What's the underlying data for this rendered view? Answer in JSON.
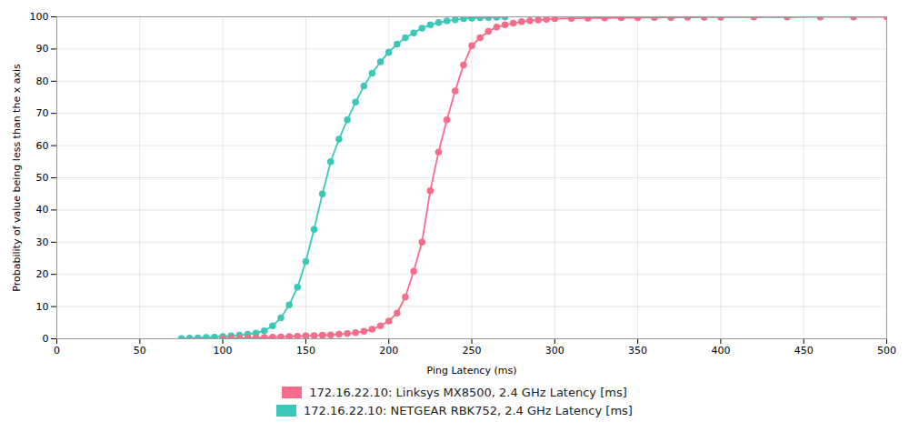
{
  "chart_data": {
    "type": "line",
    "xlabel": "Ping Latency (ms)",
    "ylabel": "Probability of value being less than the x axis",
    "xlim": [
      0,
      500
    ],
    "ylim": [
      0,
      100
    ],
    "xticks": [
      0,
      50,
      100,
      150,
      200,
      250,
      300,
      350,
      400,
      450,
      500
    ],
    "yticks": [
      0,
      10,
      20,
      30,
      40,
      50,
      60,
      70,
      80,
      90,
      100
    ],
    "grid": true,
    "legend": "bottom",
    "series": [
      {
        "name": "172.16.22.10: Linksys MX8500, 2.4 GHz Latency [ms]",
        "color": "#f76c8a",
        "marker": "circle",
        "x": [
          100,
          105,
          110,
          115,
          120,
          125,
          130,
          135,
          140,
          145,
          150,
          155,
          160,
          165,
          170,
          175,
          180,
          185,
          190,
          195,
          200,
          205,
          210,
          215,
          220,
          225,
          230,
          235,
          240,
          245,
          250,
          255,
          260,
          265,
          270,
          275,
          280,
          285,
          290,
          295,
          300,
          310,
          320,
          330,
          340,
          350,
          360,
          370,
          380,
          390,
          400,
          420,
          440,
          460,
          480,
          500
        ],
        "values": [
          0.1,
          0.15,
          0.2,
          0.25,
          0.3,
          0.4,
          0.5,
          0.6,
          0.7,
          0.8,
          0.9,
          1.0,
          1.1,
          1.2,
          1.4,
          1.6,
          1.9,
          2.3,
          3.0,
          4.0,
          5.5,
          8.0,
          13.0,
          21.0,
          30.0,
          46.0,
          58.0,
          68.0,
          77.0,
          85.0,
          91.0,
          93.5,
          95.5,
          96.8,
          97.5,
          98.0,
          98.5,
          98.8,
          99.0,
          99.2,
          99.4,
          99.5,
          99.6,
          99.65,
          99.7,
          99.75,
          99.78,
          99.82,
          99.85,
          99.87,
          99.89,
          99.91,
          99.93,
          99.94,
          99.96,
          99.97
        ]
      },
      {
        "name": "172.16.22.10: NETGEAR RBK752, 2.4 GHz Latency [ms]",
        "color": "#3cc8b8",
        "marker": "circle",
        "x": [
          75,
          80,
          85,
          90,
          95,
          100,
          105,
          110,
          115,
          120,
          125,
          130,
          135,
          140,
          145,
          150,
          155,
          160,
          165,
          170,
          175,
          180,
          185,
          190,
          195,
          200,
          205,
          210,
          215,
          220,
          225,
          230,
          235,
          240,
          245,
          250,
          255,
          260,
          265,
          270
        ],
        "values": [
          0.1,
          0.2,
          0.3,
          0.4,
          0.5,
          0.7,
          0.9,
          1.1,
          1.4,
          1.8,
          2.5,
          4.0,
          6.5,
          10.5,
          16.0,
          24.0,
          34.0,
          45.0,
          55.0,
          62.0,
          68.0,
          73.5,
          78.5,
          82.5,
          86.0,
          89.0,
          91.5,
          93.5,
          95.0,
          96.5,
          97.5,
          98.2,
          98.7,
          99.1,
          99.4,
          99.6,
          99.7,
          99.8,
          99.87,
          99.9
        ]
      }
    ]
  }
}
